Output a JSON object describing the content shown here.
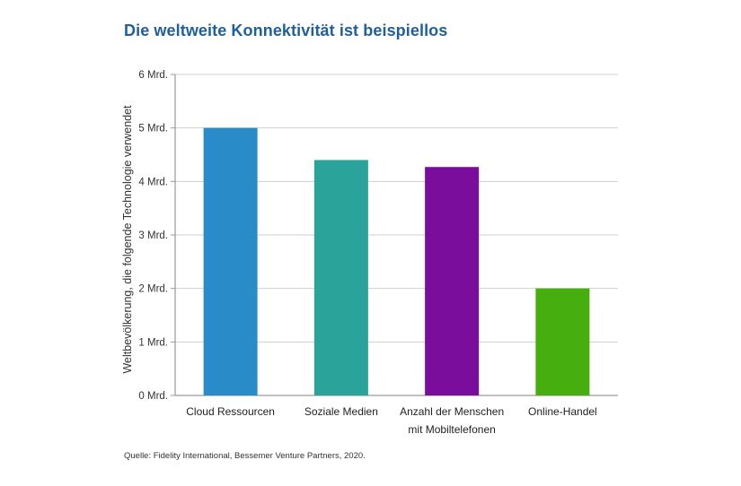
{
  "chart_data": {
    "type": "bar",
    "title": "Die weltweite Konnektivität ist beispiellos",
    "ylabel": "Weltbevölkerung, die folgende Technologie verwendet",
    "xlabel": "",
    "ylim": [
      0,
      6
    ],
    "grid": true,
    "yticks": [
      0,
      1,
      2,
      3,
      4,
      5,
      6
    ],
    "ytick_labels": [
      "0 Mrd.",
      "1 Mrd.",
      "2 Mrd.",
      "3 Mrd.",
      "4 Mrd.",
      "5 Mrd.",
      "6 Mrd."
    ],
    "categories": [
      [
        "Cloud Ressourcen"
      ],
      [
        "Soziale Medien"
      ],
      [
        "Anzahl der Menschen",
        "mit Mobiltelefonen"
      ],
      [
        "Online-Handel"
      ]
    ],
    "values": [
      5.0,
      4.4,
      4.27,
      2.0
    ],
    "colors": [
      "#2a8bc9",
      "#2aa39b",
      "#7a0d9b",
      "#47ae0f"
    ]
  },
  "source": "Quelle: Fidelity International, Bessemer Venture Partners, 2020."
}
